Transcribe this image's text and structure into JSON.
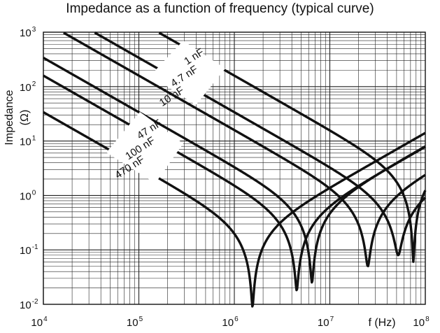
{
  "chart_data": {
    "type": "line",
    "title": "Impedance as a function of frequency (typical curve)",
    "xlabel": "f (Hz)",
    "ylabel_main": "Impedance",
    "ylabel_unit": "(Ω)",
    "xscale": "log",
    "yscale": "log",
    "xlim": [
      10000,
      100000000
    ],
    "ylim": [
      0.01,
      1000
    ],
    "grid": true,
    "xticks": [
      {
        "base": "10",
        "exp": "4"
      },
      {
        "base": "10",
        "exp": "5"
      },
      {
        "base": "10",
        "exp": "6"
      },
      {
        "base": "10",
        "exp": "7"
      },
      {
        "base": "10",
        "exp": "8"
      }
    ],
    "yticks": [
      {
        "base": "10",
        "exp": "3"
      },
      {
        "base": "10",
        "exp": "2"
      },
      {
        "base": "10",
        "exp": "1"
      },
      {
        "base": "10",
        "exp": "0"
      },
      {
        "base": "10",
        "exp": "-1"
      },
      {
        "base": "10",
        "exp": "-2"
      }
    ],
    "series": [
      {
        "name": "1 nF",
        "capacitance_F": 1e-09,
        "resonance_Hz": 75000000,
        "min_impedance_ohm": 0.06
      },
      {
        "name": "4.7 nF",
        "capacitance_F": 4.7e-09,
        "resonance_Hz": 52000000,
        "min_impedance_ohm": 0.08
      },
      {
        "name": "10 nF",
        "capacitance_F": 1e-08,
        "resonance_Hz": 25000000,
        "min_impedance_ohm": 0.05
      },
      {
        "name": "47 nF",
        "capacitance_F": 4.7e-08,
        "resonance_Hz": 6500000,
        "min_impedance_ohm": 0.025
      },
      {
        "name": "100 nF",
        "capacitance_F": 1e-07,
        "resonance_Hz": 4500000,
        "min_impedance_ohm": 0.018
      },
      {
        "name": "470 nF",
        "capacitance_F": 4.7e-07,
        "resonance_Hz": 1550000,
        "min_impedance_ohm": 0.009
      }
    ]
  }
}
